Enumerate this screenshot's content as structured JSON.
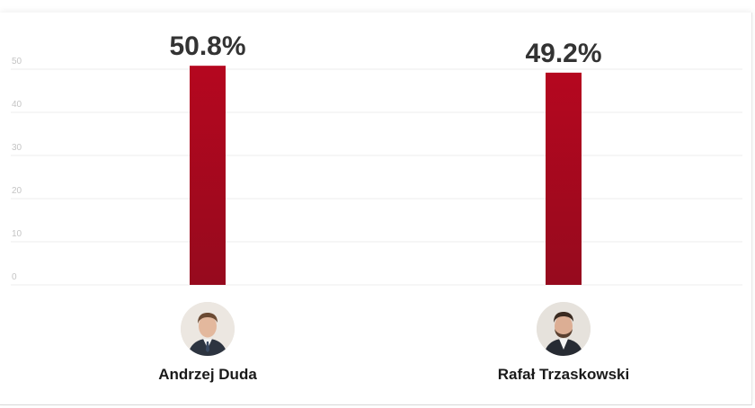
{
  "chart_data": {
    "type": "bar",
    "categories": [
      "Andrzej Duda",
      "Rafał Trzaskowski"
    ],
    "values": [
      50.8,
      49.2
    ],
    "data_labels": [
      "50.8%",
      "49.2%"
    ],
    "ylim": [
      0,
      50
    ],
    "yticks": [
      0,
      10,
      20,
      30,
      40,
      50
    ],
    "title": "",
    "xlabel": "",
    "ylabel": "",
    "grid": true,
    "bar_color": "#b5071f"
  },
  "candidates": [
    {
      "name": "Andrzej Duda",
      "icon": "candidate-photo-duda"
    },
    {
      "name": "Rafał Trzaskowski",
      "icon": "candidate-photo-trzaskowski"
    }
  ]
}
